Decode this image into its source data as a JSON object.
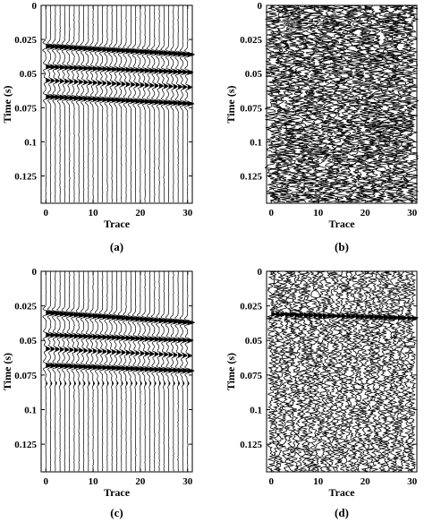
{
  "chart_data": [
    {
      "type": "seismic-wiggle",
      "caption": "(a)",
      "xlabel": "Trace",
      "ylabel": "Time (s)",
      "xlim": [
        -1,
        31
      ],
      "ylim": [
        0,
        0.145
      ],
      "xticks": [
        "0",
        "10",
        "20",
        "30"
      ],
      "yticks": [
        "0",
        "0.025",
        "0.05",
        "0.075",
        "0.1",
        "0.125"
      ],
      "traces": 31,
      "noise_level": "low",
      "events": [
        {
          "time_at_trace0": 0.03,
          "time_at_trace30": 0.036,
          "amplitude": 1.0
        },
        {
          "time_at_trace0": 0.045,
          "time_at_trace30": 0.049,
          "amplitude": 0.8
        },
        {
          "time_at_trace0": 0.055,
          "time_at_trace30": 0.06,
          "amplitude": 0.6
        },
        {
          "time_at_trace0": 0.067,
          "time_at_trace30": 0.072,
          "amplitude": 0.9
        }
      ]
    },
    {
      "type": "seismic-wiggle",
      "caption": "(b)",
      "xlabel": "Trace",
      "ylabel": "Time (s)",
      "xlim": [
        -1,
        31
      ],
      "ylim": [
        0,
        0.145
      ],
      "xticks": [
        "0",
        "10",
        "20",
        "30"
      ],
      "yticks": [
        "0",
        "0.025",
        "0.05",
        "0.075",
        "0.1",
        "0.125"
      ],
      "traces": 31,
      "noise_level": "very-high",
      "events": []
    },
    {
      "type": "seismic-wiggle",
      "caption": "(c)",
      "xlabel": "Trace",
      "ylabel": "Time (s)",
      "xlim": [
        -1,
        31
      ],
      "ylim": [
        0,
        0.145
      ],
      "xticks": [
        "0",
        "10",
        "20",
        "30"
      ],
      "yticks": [
        "0",
        "0.025",
        "0.05",
        "0.075",
        "0.1",
        "0.125"
      ],
      "traces": 31,
      "noise_level": "low",
      "events": [
        {
          "time_at_trace0": 0.03,
          "time_at_trace30": 0.037,
          "amplitude": 1.0
        },
        {
          "time_at_trace0": 0.046,
          "time_at_trace30": 0.05,
          "amplitude": 0.8
        },
        {
          "time_at_trace0": 0.056,
          "time_at_trace30": 0.061,
          "amplitude": 0.6
        },
        {
          "time_at_trace0": 0.068,
          "time_at_trace30": 0.072,
          "amplitude": 0.9
        },
        {
          "time_at_trace0": 0.081,
          "time_at_trace30": 0.081,
          "amplitude": 0.2
        }
      ]
    },
    {
      "type": "seismic-wiggle",
      "caption": "(d)",
      "xlabel": "Trace",
      "ylabel": "Time (s)",
      "xlim": [
        -1,
        31
      ],
      "ylim": [
        0,
        0.145
      ],
      "xticks": [
        "0",
        "10",
        "20",
        "30"
      ],
      "yticks": [
        "0",
        "0.025",
        "0.05",
        "0.075",
        "0.1",
        "0.125"
      ],
      "traces": 31,
      "noise_level": "high",
      "events": [
        {
          "time_at_trace0": 0.031,
          "time_at_trace30": 0.034,
          "amplitude": 0.9
        }
      ]
    }
  ]
}
